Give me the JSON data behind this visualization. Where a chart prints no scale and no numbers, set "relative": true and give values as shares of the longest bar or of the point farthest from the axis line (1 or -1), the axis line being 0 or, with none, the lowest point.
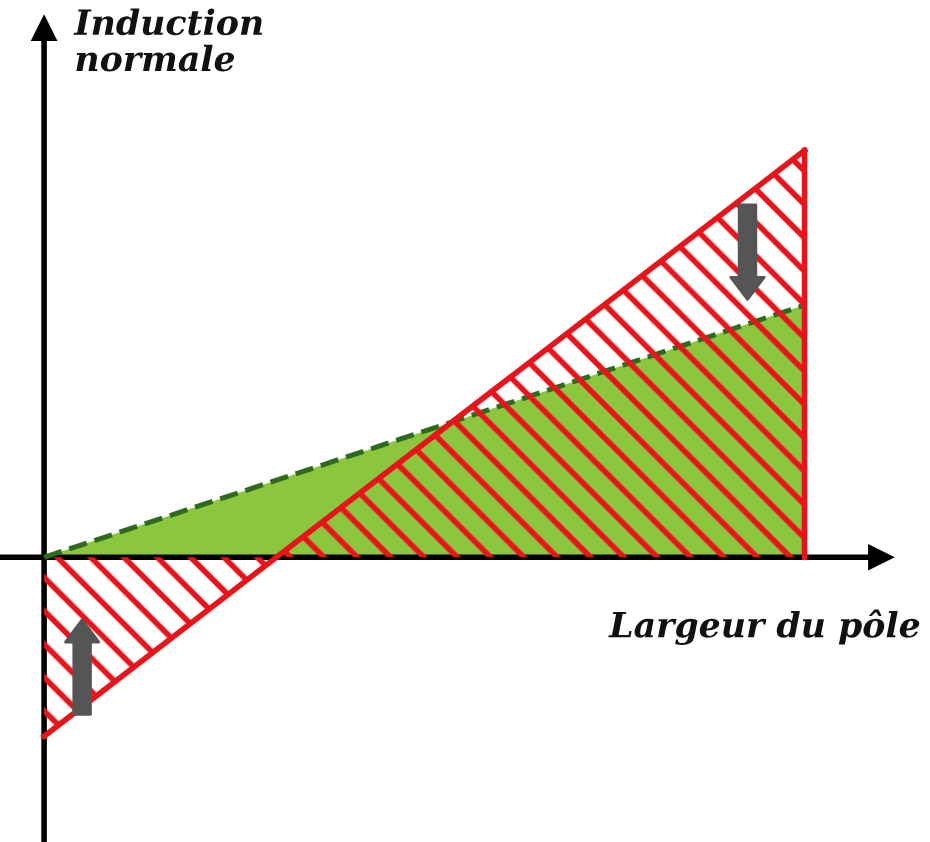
{
  "chart_data": {
    "type": "area",
    "relative": true,
    "xlabel": "Largeur du pôle",
    "ylabel": "Induction\nnormale",
    "categories": [
      null,
      null
    ],
    "series": [
      {
        "color": "#e8141b",
        "line_style": "solid",
        "values": [
          -0.44,
          1
        ]
      },
      {
        "color": "#8cc63f",
        "line_style": "dashed",
        "values": [
          0,
          0.62
        ]
      }
    ]
  }
}
